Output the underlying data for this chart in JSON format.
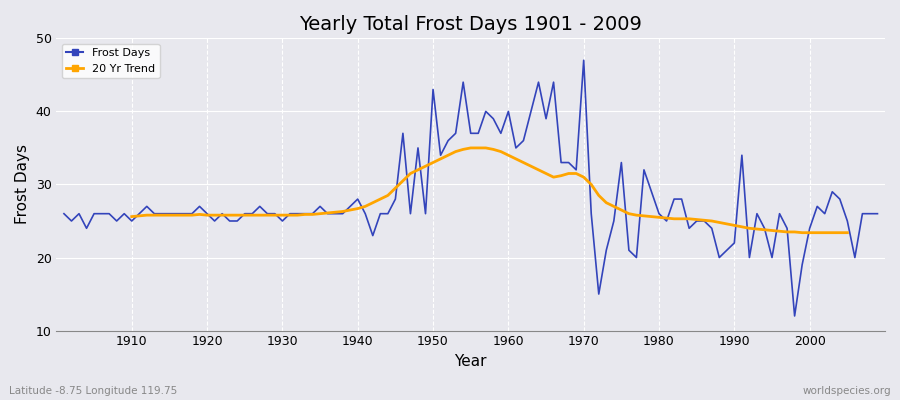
{
  "title": "Yearly Total Frost Days 1901 - 2009",
  "xlabel": "Year",
  "ylabel": "Frost Days",
  "bottom_left_label": "Latitude -8.75 Longitude 119.75",
  "bottom_right_label": "worldspecies.org",
  "ylim": [
    10,
    50
  ],
  "yticks": [
    10,
    20,
    30,
    40,
    50
  ],
  "line_color": "#3344bb",
  "trend_color": "#FFA500",
  "bg_color": "#e8e8ee",
  "legend_frost": "Frost Days",
  "legend_trend": "20 Yr Trend",
  "years": [
    1901,
    1902,
    1903,
    1904,
    1905,
    1906,
    1907,
    1908,
    1909,
    1910,
    1911,
    1912,
    1913,
    1914,
    1915,
    1916,
    1917,
    1918,
    1919,
    1920,
    1921,
    1922,
    1923,
    1924,
    1925,
    1926,
    1927,
    1928,
    1929,
    1930,
    1931,
    1932,
    1933,
    1934,
    1935,
    1936,
    1937,
    1938,
    1939,
    1940,
    1941,
    1942,
    1943,
    1944,
    1945,
    1946,
    1947,
    1948,
    1949,
    1950,
    1951,
    1952,
    1953,
    1954,
    1955,
    1956,
    1957,
    1958,
    1959,
    1960,
    1961,
    1962,
    1963,
    1964,
    1965,
    1966,
    1967,
    1968,
    1969,
    1970,
    1971,
    1972,
    1973,
    1974,
    1975,
    1976,
    1977,
    1978,
    1979,
    1980,
    1981,
    1982,
    1983,
    1984,
    1985,
    1986,
    1987,
    1988,
    1989,
    1990,
    1991,
    1992,
    1993,
    1994,
    1995,
    1996,
    1997,
    1998,
    1999,
    2000,
    2001,
    2002,
    2003,
    2004,
    2005,
    2006,
    2007,
    2008,
    2009
  ],
  "frost_days": [
    26,
    25,
    26,
    24,
    26,
    26,
    26,
    25,
    26,
    25,
    26,
    27,
    26,
    26,
    26,
    26,
    26,
    26,
    27,
    26,
    25,
    26,
    25,
    25,
    26,
    26,
    27,
    26,
    26,
    25,
    26,
    26,
    26,
    26,
    27,
    26,
    26,
    26,
    27,
    28,
    26,
    23,
    26,
    26,
    28,
    37,
    26,
    35,
    26,
    43,
    34,
    36,
    37,
    44,
    37,
    37,
    40,
    39,
    37,
    40,
    35,
    36,
    40,
    44,
    39,
    44,
    33,
    33,
    32,
    47,
    26,
    15,
    21,
    25,
    33,
    21,
    20,
    32,
    29,
    26,
    25,
    28,
    28,
    24,
    25,
    25,
    24,
    20,
    21,
    22,
    34,
    20,
    26,
    24,
    20,
    26,
    24,
    12,
    19,
    24,
    27,
    26,
    29,
    28,
    25,
    20,
    26,
    26,
    26
  ],
  "trend_years": [
    1910,
    1911,
    1912,
    1913,
    1914,
    1915,
    1916,
    1917,
    1918,
    1919,
    1920,
    1921,
    1922,
    1923,
    1924,
    1925,
    1926,
    1927,
    1928,
    1929,
    1930,
    1931,
    1932,
    1933,
    1934,
    1935,
    1936,
    1937,
    1938,
    1939,
    1940,
    1941,
    1942,
    1943,
    1944,
    1945,
    1946,
    1947,
    1948,
    1949,
    1950,
    1951,
    1952,
    1953,
    1954,
    1955,
    1956,
    1957,
    1958,
    1959,
    1960,
    1961,
    1962,
    1963,
    1964,
    1965,
    1966,
    1967,
    1968,
    1969,
    1970,
    1971,
    1972,
    1973,
    1974,
    1975,
    1976,
    1977,
    1978,
    1979,
    1980,
    1981,
    1982,
    1983,
    1984,
    1985,
    1986,
    1987,
    1988,
    1989,
    1990,
    1991,
    1992,
    1993,
    1994,
    1995,
    1996,
    1997,
    1998,
    1999,
    2000,
    2001,
    2002,
    2003,
    2004,
    2005
  ],
  "trend_values": [
    25.6,
    25.7,
    25.8,
    25.8,
    25.8,
    25.8,
    25.8,
    25.8,
    25.8,
    25.9,
    25.8,
    25.8,
    25.8,
    25.8,
    25.8,
    25.8,
    25.8,
    25.8,
    25.8,
    25.8,
    25.8,
    25.8,
    25.8,
    25.9,
    25.9,
    26.0,
    26.1,
    26.2,
    26.3,
    26.5,
    26.7,
    27.0,
    27.5,
    28.0,
    28.5,
    29.5,
    30.5,
    31.5,
    32.0,
    32.5,
    33.0,
    33.5,
    34.0,
    34.5,
    34.8,
    35.0,
    35.0,
    35.0,
    34.8,
    34.5,
    34.0,
    33.5,
    33.0,
    32.5,
    32.0,
    31.5,
    31.0,
    31.2,
    31.5,
    31.5,
    31.0,
    30.0,
    28.5,
    27.5,
    27.0,
    26.5,
    26.0,
    25.8,
    25.7,
    25.6,
    25.5,
    25.4,
    25.3,
    25.3,
    25.3,
    25.2,
    25.1,
    25.0,
    24.8,
    24.6,
    24.4,
    24.2,
    24.0,
    23.9,
    23.8,
    23.7,
    23.6,
    23.5,
    23.5,
    23.4,
    23.4,
    23.4,
    23.4,
    23.4,
    23.4,
    23.4
  ]
}
